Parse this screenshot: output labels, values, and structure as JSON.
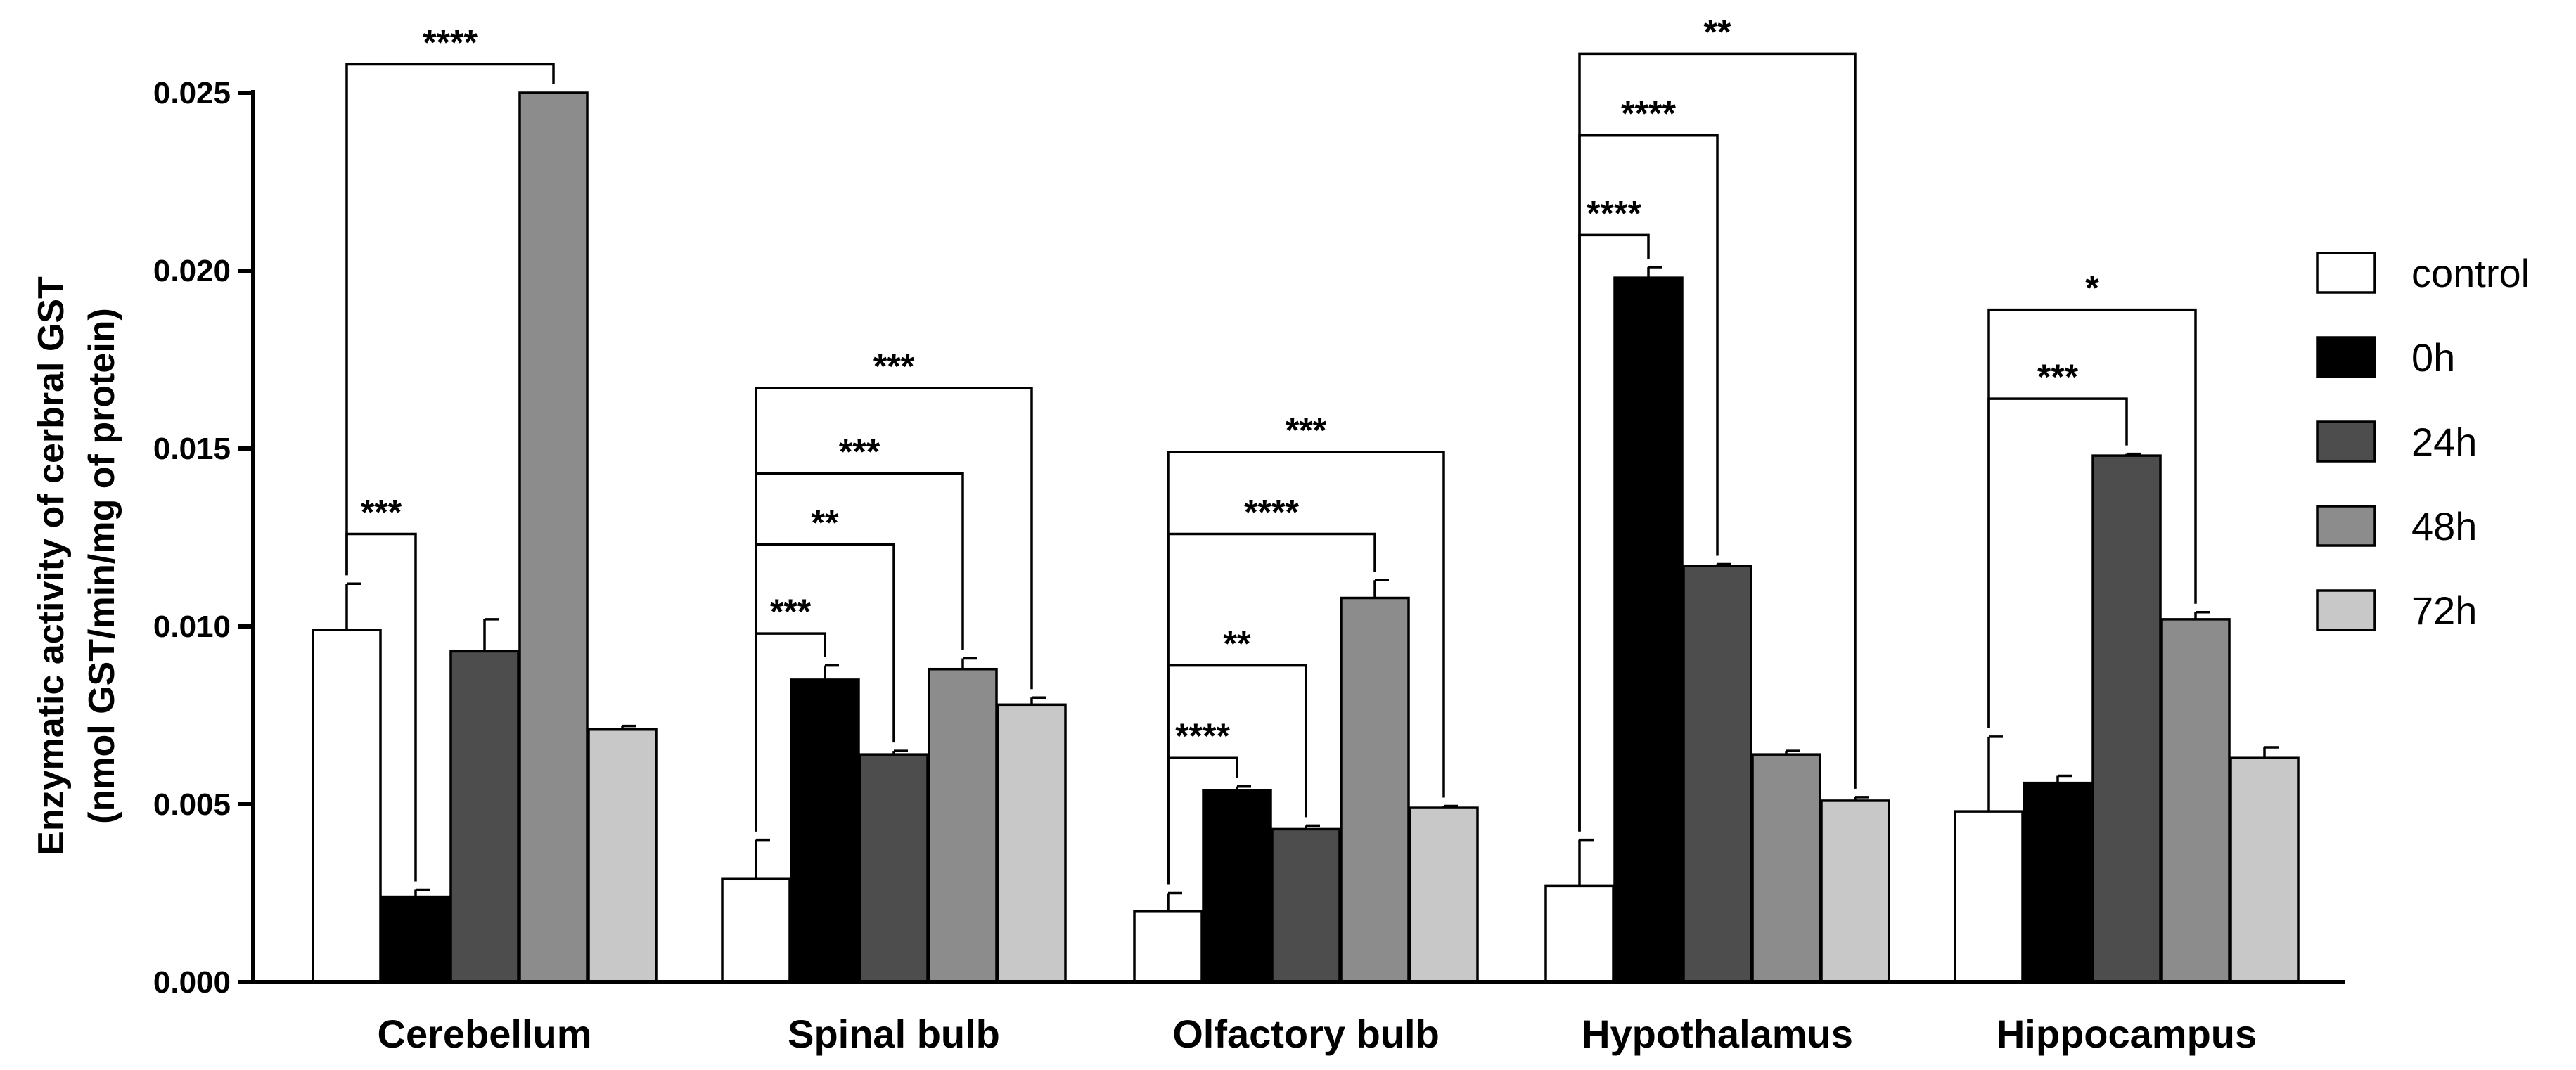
{
  "chart_data": {
    "type": "bar",
    "title": "",
    "xlabel": "",
    "ylabel_lines": [
      "Enzymatic activity of cerbral GST",
      "(nmol GST/min/mg of protein)"
    ],
    "ylim": [
      0,
      0.025
    ],
    "yticks": [
      "0.000",
      "0.005",
      "0.010",
      "0.015",
      "0.020",
      "0.025"
    ],
    "categories": [
      "Cerebellum",
      "Spinal bulb",
      "Olfactory bulb",
      "Hypothalamus",
      "Hippocampus"
    ],
    "legend_position": "right",
    "series": [
      {
        "name": "control",
        "color": "#ffffff",
        "values": [
          0.0099,
          0.0029,
          0.002,
          0.0027,
          0.0048
        ],
        "errors": [
          0.0013,
          0.0011,
          0.0005,
          0.0013,
          0.0021
        ]
      },
      {
        "name": "0h",
        "color": "#000000",
        "values": [
          0.0024,
          0.0085,
          0.0054,
          0.0198,
          0.0056
        ],
        "errors": [
          0.0002,
          0.0004,
          0.0001,
          0.0003,
          0.0002
        ]
      },
      {
        "name": "24h",
        "color": "#4d4d4d",
        "values": [
          0.0093,
          0.0064,
          0.0043,
          0.0117,
          0.0148
        ],
        "errors": [
          0.0009,
          0.0001,
          0.0001,
          5e-05,
          5e-05
        ]
      },
      {
        "name": "48h",
        "color": "#8c8c8c",
        "values": [
          0.025,
          0.0088,
          0.0108,
          0.0064,
          0.0102
        ],
        "errors": [
          0.0,
          0.0003,
          0.0005,
          0.0001,
          0.0002
        ]
      },
      {
        "name": "72h",
        "color": "#c8c8c8",
        "values": [
          0.0071,
          0.0078,
          0.0049,
          0.0051,
          0.0063
        ],
        "errors": [
          0.0001,
          0.0002,
          5e-05,
          0.0001,
          0.0003
        ]
      }
    ],
    "significance": [
      {
        "group": 0,
        "from": 0,
        "to": 3,
        "label": "****",
        "level": 0.0258
      },
      {
        "group": 0,
        "from": 0,
        "to": 1,
        "label": "***",
        "level": 0.0126
      },
      {
        "group": 1,
        "from": 0,
        "to": 4,
        "label": "***",
        "level": 0.0167
      },
      {
        "group": 1,
        "from": 0,
        "to": 3,
        "label": "***",
        "level": 0.0143
      },
      {
        "group": 1,
        "from": 0,
        "to": 2,
        "label": "**",
        "level": 0.0123
      },
      {
        "group": 1,
        "from": 0,
        "to": 1,
        "label": "***",
        "level": 0.0098
      },
      {
        "group": 2,
        "from": 0,
        "to": 4,
        "label": "***",
        "level": 0.0149
      },
      {
        "group": 2,
        "from": 0,
        "to": 3,
        "label": "****",
        "level": 0.0126
      },
      {
        "group": 2,
        "from": 0,
        "to": 2,
        "label": "**",
        "level": 0.0089
      },
      {
        "group": 2,
        "from": 0,
        "to": 1,
        "label": "****",
        "level": 0.0063
      },
      {
        "group": 3,
        "from": 0,
        "to": 4,
        "label": "**",
        "level": 0.0261
      },
      {
        "group": 3,
        "from": 0,
        "to": 2,
        "label": "****",
        "level": 0.0238
      },
      {
        "group": 3,
        "from": 0,
        "to": 1,
        "label": "****",
        "level": 0.021
      },
      {
        "group": 4,
        "from": 0,
        "to": 3,
        "label": "*",
        "level": 0.0189
      },
      {
        "group": 4,
        "from": 0,
        "to": 2,
        "label": "***",
        "level": 0.0164
      }
    ]
  }
}
